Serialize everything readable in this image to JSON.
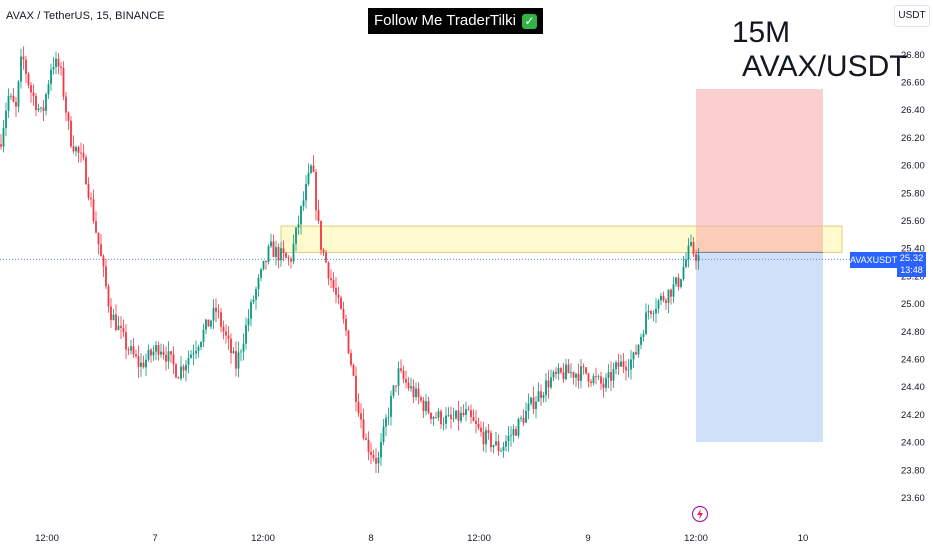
{
  "header": {
    "symbol": "AVAX / TetherUS, 15, BINANCE",
    "promo_text": "Follow Me TraderTilki",
    "promo_icon": "check-icon",
    "timeframe_label": "15M",
    "pair_label": "AVAX/USDT",
    "currency": "USDT"
  },
  "price_tag": {
    "ticker": "AVAXUSDT",
    "price": "25.32",
    "countdown": "13:48"
  },
  "icons": {
    "events": "lightning-icon"
  },
  "colors": {
    "up": "#089981",
    "down": "#f23645",
    "zone_fill": "#fff9c4",
    "zone_border": "#d4c66a",
    "stop_fill": "#f7a7a7",
    "target_fill": "#b3cbf5",
    "accent": "#2962ff"
  },
  "chart_data": {
    "type": "candlestick",
    "title": "AVAX / TetherUS, 15, BINANCE",
    "ylim": [
      23.5,
      27.0
    ],
    "y_ticks": [
      "23.60",
      "23.80",
      "24.00",
      "24.20",
      "24.40",
      "24.60",
      "24.80",
      "25.00",
      "25.20",
      "25.40",
      "25.60",
      "25.80",
      "26.00",
      "26.20",
      "26.40",
      "26.60",
      "26.80"
    ],
    "x_ticks": [
      "12:00",
      "7",
      "12:00",
      "8",
      "12:00",
      "9",
      "12:00",
      "10"
    ],
    "last_price": 25.32,
    "close_path": [
      [
        0,
        26.15
      ],
      [
        8,
        26.5
      ],
      [
        16,
        26.4
      ],
      [
        22,
        26.8
      ],
      [
        30,
        26.55
      ],
      [
        42,
        26.35
      ],
      [
        52,
        26.75
      ],
      [
        60,
        26.7
      ],
      [
        70,
        26.2
      ],
      [
        84,
        26.0
      ],
      [
        98,
        25.45
      ],
      [
        110,
        24.95
      ],
      [
        126,
        24.7
      ],
      [
        140,
        24.55
      ],
      [
        160,
        24.7
      ],
      [
        178,
        24.5
      ],
      [
        196,
        24.7
      ],
      [
        216,
        24.95
      ],
      [
        236,
        24.55
      ],
      [
        254,
        25.05
      ],
      [
        270,
        25.4
      ],
      [
        290,
        25.3
      ],
      [
        302,
        25.7
      ],
      [
        312,
        26.0
      ],
      [
        320,
        25.45
      ],
      [
        334,
        25.1
      ],
      [
        346,
        24.8
      ],
      [
        356,
        24.35
      ],
      [
        366,
        24.0
      ],
      [
        378,
        23.85
      ],
      [
        386,
        24.15
      ],
      [
        398,
        24.5
      ],
      [
        414,
        24.35
      ],
      [
        432,
        24.2
      ],
      [
        450,
        24.15
      ],
      [
        466,
        24.2
      ],
      [
        482,
        24.05
      ],
      [
        500,
        23.95
      ],
      [
        516,
        24.1
      ],
      [
        534,
        24.3
      ],
      [
        550,
        24.45
      ],
      [
        566,
        24.5
      ],
      [
        586,
        24.5
      ],
      [
        604,
        24.4
      ],
      [
        618,
        24.55
      ],
      [
        634,
        24.6
      ],
      [
        648,
        24.95
      ],
      [
        664,
        25.05
      ],
      [
        678,
        25.15
      ],
      [
        690,
        25.4
      ],
      [
        700,
        25.32
      ]
    ],
    "zones": [
      {
        "name": "supply-zone",
        "from": 25.37,
        "to": 25.56
      },
      {
        "name": "stop-loss-area",
        "from": 25.37,
        "to": 26.55
      },
      {
        "name": "take-profit-area",
        "from": 24.0,
        "to": 25.37
      }
    ]
  }
}
